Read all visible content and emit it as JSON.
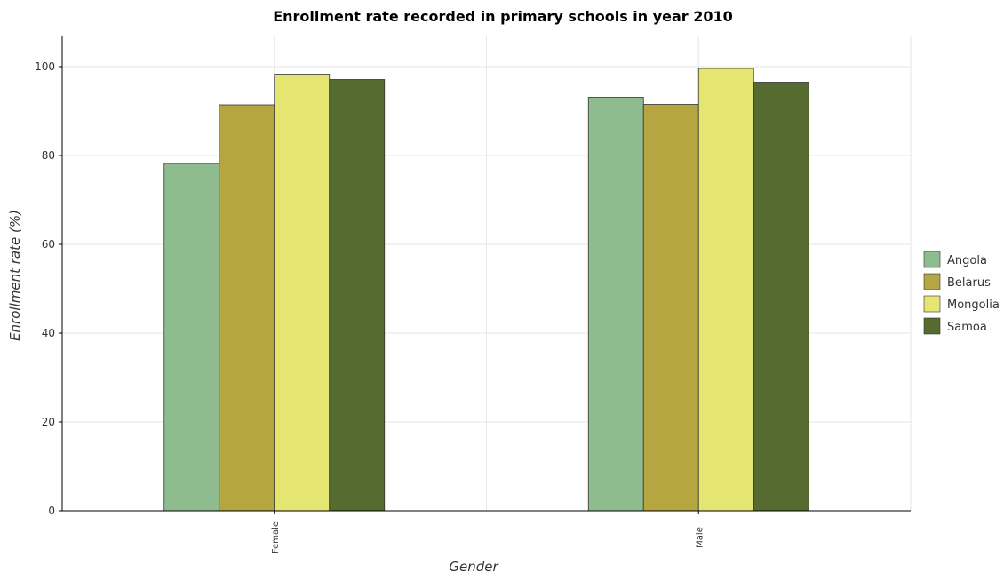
{
  "chart_data": {
    "type": "bar",
    "title": "Enrollment rate recorded in primary schools in year 2010",
    "xlabel": "Gender",
    "ylabel": "Enrollment rate (%)",
    "categories": [
      "Female",
      "Male"
    ],
    "series": [
      {
        "name": "Angola",
        "values": [
          78.2,
          93.1
        ],
        "color": "#8fbc8f"
      },
      {
        "name": "Belarus",
        "values": [
          91.4,
          91.5
        ],
        "color": "#b5a642"
      },
      {
        "name": "Mongolia",
        "values": [
          98.3,
          99.6
        ],
        "color": "#e5e572"
      },
      {
        "name": "Samoa",
        "values": [
          97.1,
          96.5
        ],
        "color": "#556b2f"
      }
    ],
    "ylim": [
      0,
      107
    ],
    "yticks": [
      0,
      20,
      40,
      60,
      80,
      100
    ],
    "grid": true,
    "legend_position": "right"
  }
}
